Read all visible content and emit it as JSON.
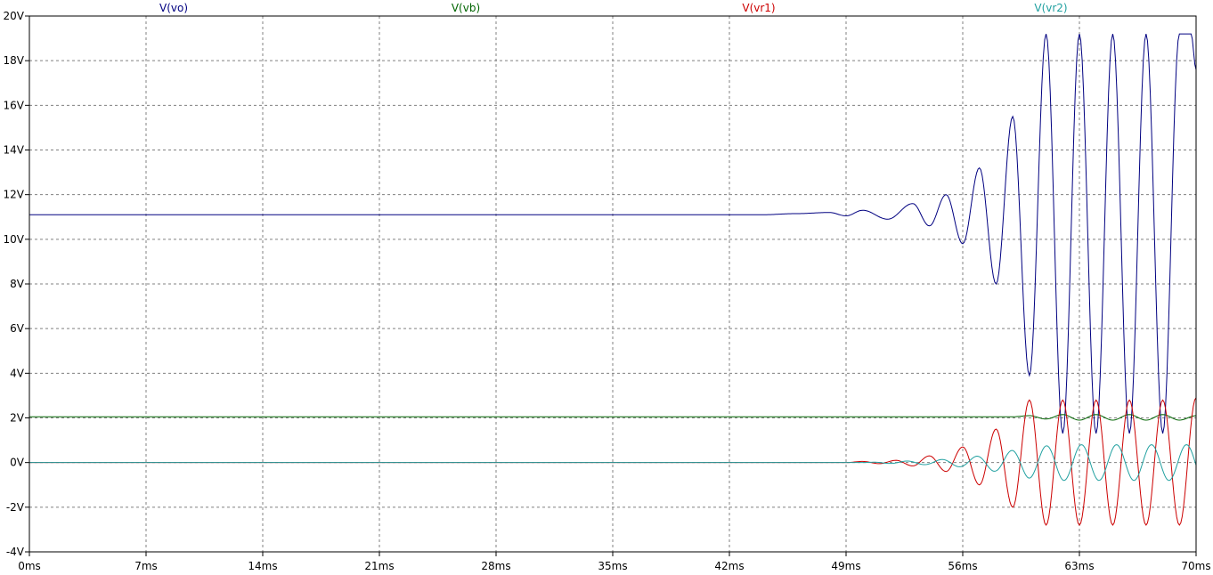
{
  "chart_data": {
    "type": "line",
    "x_unit": "ms",
    "y_unit": "V",
    "xlim": [
      0,
      70
    ],
    "ylim": [
      -4,
      20
    ],
    "grid": true,
    "legend_placement": "top",
    "x_ticks": [
      "0ms",
      "7ms",
      "14ms",
      "21ms",
      "28ms",
      "35ms",
      "42ms",
      "49ms",
      "56ms",
      "63ms",
      "70ms"
    ],
    "y_ticks": [
      "20V",
      "18V",
      "16V",
      "14V",
      "12V",
      "10V",
      "8V",
      "6V",
      "4V",
      "2V",
      "0V",
      "-2V",
      "-4V"
    ],
    "series": [
      {
        "name": "V(vo)",
        "color": "#000080",
        "baseline": 11.1,
        "x": [
          0,
          40,
          44,
          46,
          48,
          49,
          50,
          51.5,
          53,
          54,
          55,
          56,
          57,
          58,
          59,
          60,
          61,
          62,
          63,
          64,
          65,
          66,
          67,
          68,
          69,
          69.7,
          70
        ],
        "y": [
          11.1,
          11.1,
          11.1,
          11.15,
          11.2,
          11.05,
          11.3,
          10.9,
          11.6,
          10.6,
          12.0,
          9.8,
          13.2,
          8.0,
          15.5,
          3.9,
          19.2,
          1.3,
          19.2,
          1.3,
          19.2,
          1.3,
          19.2,
          1.3,
          19.2,
          19.2,
          17.6
        ]
      },
      {
        "name": "V(vb)",
        "color": "#006400",
        "x": [
          0,
          59,
          60,
          61,
          62,
          63,
          64,
          65,
          66,
          67,
          68,
          69,
          70
        ],
        "y": [
          2.05,
          2.05,
          2.1,
          1.95,
          2.15,
          1.9,
          2.15,
          1.9,
          2.15,
          1.9,
          2.15,
          1.9,
          2.1
        ]
      },
      {
        "name": "V(vr1)",
        "color": "#cc0000",
        "x": [
          0,
          45,
          49,
          50,
          51,
          52,
          53,
          54,
          55,
          56,
          57,
          58,
          59,
          60,
          61,
          62,
          63,
          64,
          65,
          66,
          67,
          68,
          69,
          70
        ],
        "y": [
          0.0,
          0.0,
          0.0,
          0.05,
          -0.05,
          0.1,
          -0.15,
          0.3,
          -0.4,
          0.7,
          -1.0,
          1.5,
          -2.0,
          2.8,
          -2.8,
          2.8,
          -2.8,
          2.8,
          -2.8,
          2.8,
          -2.8,
          2.8,
          -2.8,
          2.9
        ]
      },
      {
        "name": "V(vr2)",
        "color": "#20a0a0",
        "x": [
          0,
          45,
          50,
          52,
          54,
          56,
          58,
          60,
          62,
          64,
          66,
          68,
          70
        ],
        "y": [
          0.0,
          0.0,
          0.0,
          0.05,
          0.1,
          0.2,
          0.4,
          0.7,
          0.8,
          0.8,
          0.8,
          0.8,
          0.8
        ],
        "amplitude_note_removed": ""
      }
    ]
  }
}
